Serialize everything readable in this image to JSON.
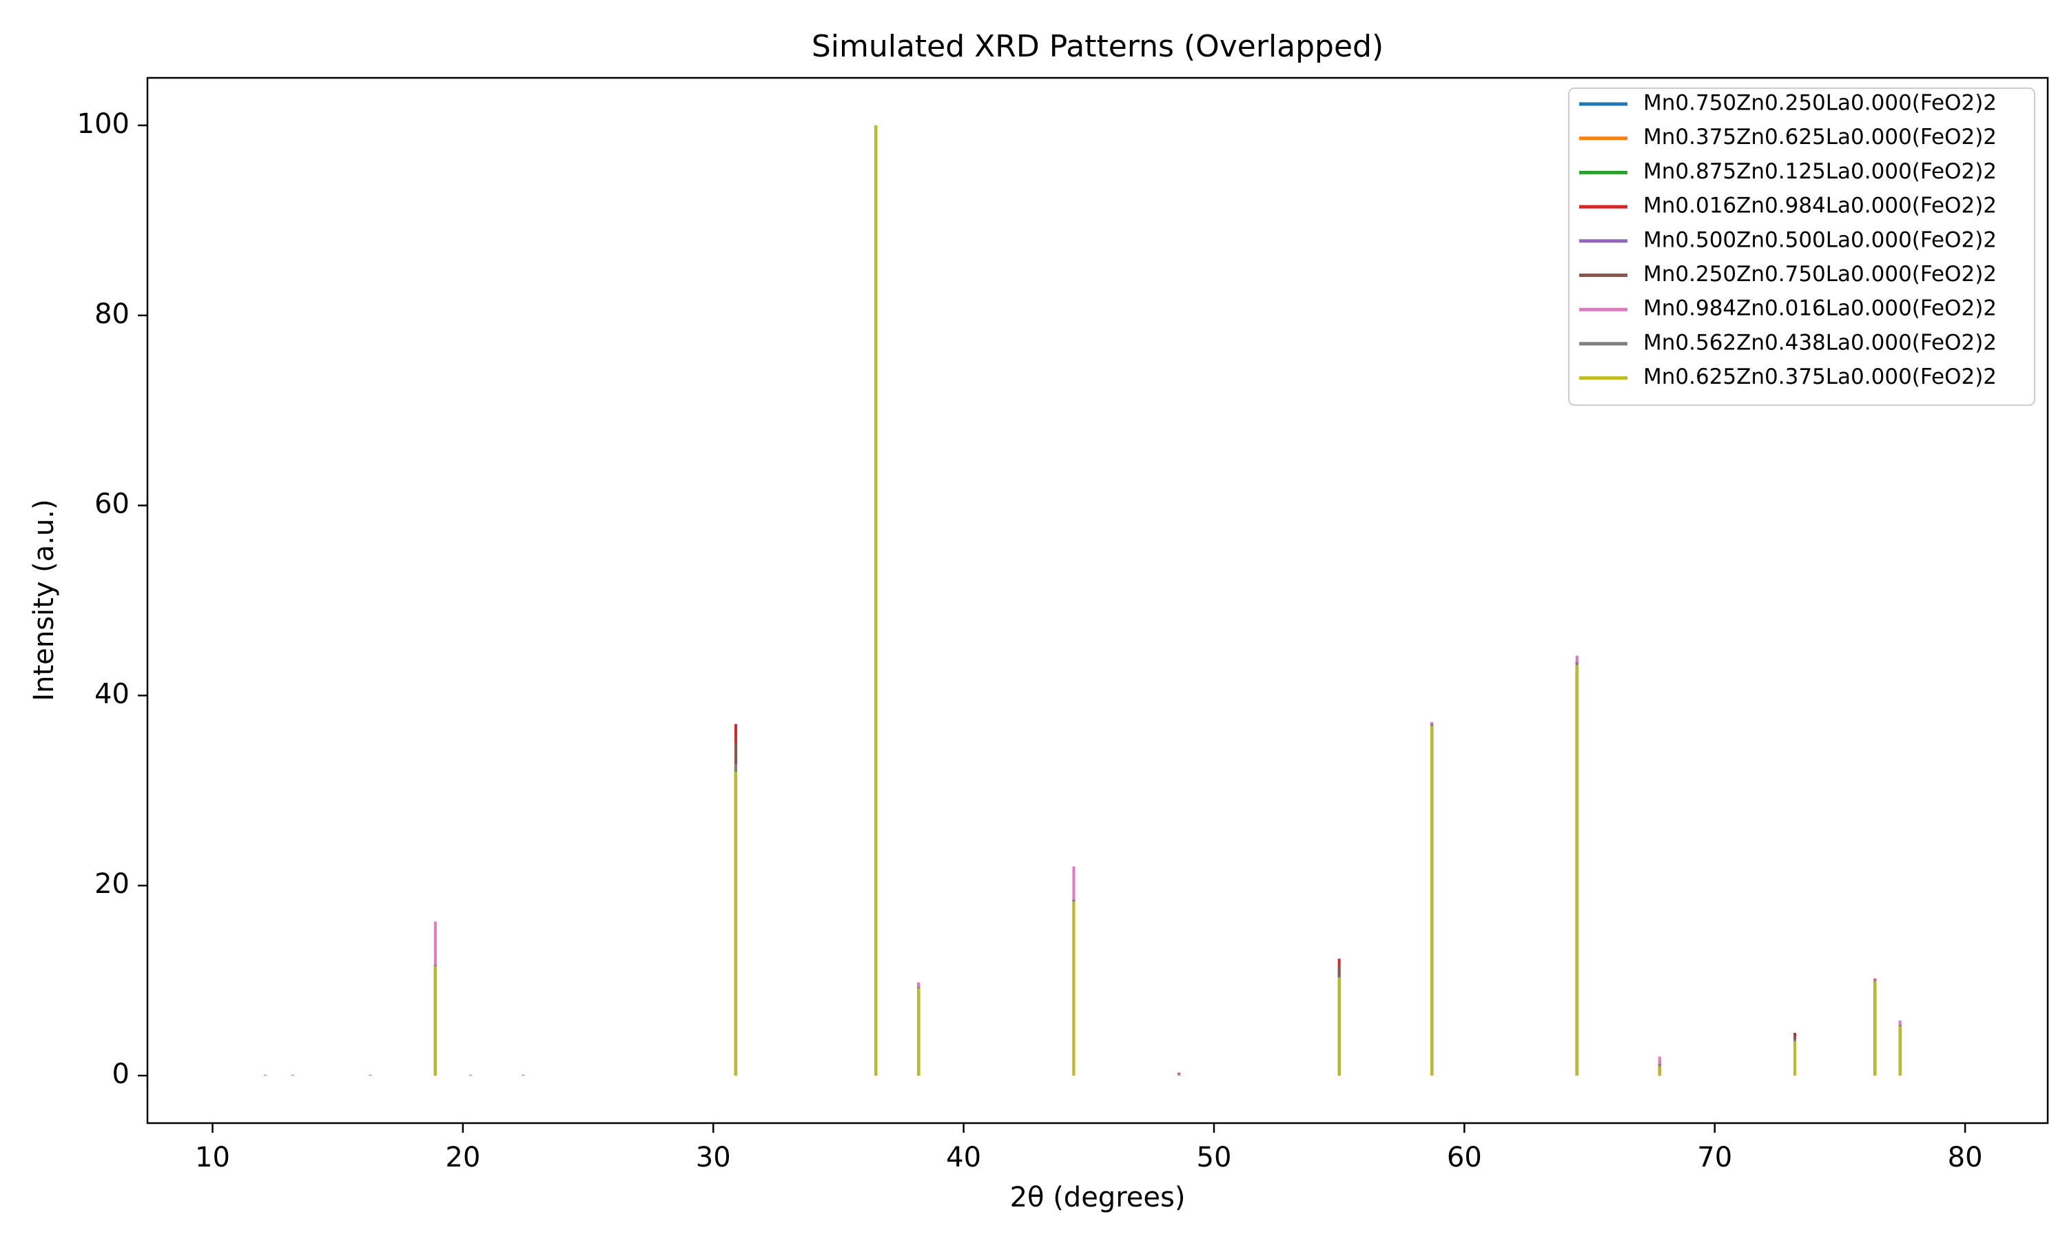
{
  "chart_data": {
    "type": "bar",
    "title": "Simulated XRD Patterns (Overlapped)",
    "xlabel": "2θ (degrees)",
    "ylabel": "Intensity (a.u.)",
    "xlim": [
      7.4,
      83.3
    ],
    "ylim": [
      -5,
      105
    ],
    "xticks": [
      10,
      20,
      30,
      40,
      50,
      60,
      70,
      80
    ],
    "yticks": [
      0,
      20,
      40,
      60,
      80,
      100
    ],
    "grid": false,
    "legend_position": "top-right",
    "series": [
      {
        "name": "Mn0.750Zn0.250La0.000(FeO2)2",
        "color": "#1f77b4",
        "peaks": [
          [
            18.9,
            11.6
          ],
          [
            30.9,
            32.5
          ],
          [
            36.5,
            100
          ],
          [
            38.2,
            9.3
          ],
          [
            44.4,
            18.5
          ],
          [
            55.0,
            10.5
          ],
          [
            58.7,
            37.0
          ],
          [
            64.5,
            43.5
          ],
          [
            67.8,
            1.2
          ],
          [
            73.2,
            3.8
          ],
          [
            76.4,
            10.0
          ],
          [
            77.4,
            5.3
          ]
        ]
      },
      {
        "name": "Mn0.375Zn0.625La0.000(FeO2)2",
        "color": "#ff7f0e",
        "peaks": [
          [
            18.9,
            11.6
          ],
          [
            30.9,
            32.5
          ],
          [
            36.5,
            100
          ],
          [
            38.2,
            9.3
          ],
          [
            44.4,
            18.5
          ],
          [
            55.0,
            10.5
          ],
          [
            58.7,
            37.0
          ],
          [
            64.5,
            43.5
          ],
          [
            67.8,
            1.2
          ],
          [
            73.2,
            3.8
          ],
          [
            76.4,
            10.0
          ],
          [
            77.4,
            5.3
          ]
        ]
      },
      {
        "name": "Mn0.875Zn0.125La0.000(FeO2)2",
        "color": "#2ca02c",
        "peaks": [
          [
            18.9,
            11.6
          ],
          [
            30.9,
            32.5
          ],
          [
            36.5,
            100
          ],
          [
            38.2,
            9.3
          ],
          [
            44.4,
            18.5
          ],
          [
            55.0,
            10.5
          ],
          [
            58.7,
            37.0
          ],
          [
            64.5,
            43.5
          ],
          [
            67.8,
            1.2
          ],
          [
            73.2,
            3.8
          ],
          [
            76.4,
            10.0
          ],
          [
            77.4,
            5.3
          ]
        ]
      },
      {
        "name": "Mn0.016Zn0.984La0.000(FeO2)2",
        "color": "#d62728",
        "peaks": [
          [
            18.9,
            11.8
          ],
          [
            30.9,
            37.0
          ],
          [
            36.5,
            100
          ],
          [
            38.2,
            9.4
          ],
          [
            44.4,
            18.6
          ],
          [
            48.6,
            0.3
          ],
          [
            55.0,
            12.3
          ],
          [
            58.7,
            37.2
          ],
          [
            64.5,
            43.6
          ],
          [
            67.8,
            1.3
          ],
          [
            73.2,
            4.5
          ],
          [
            76.4,
            10.2
          ],
          [
            77.4,
            5.4
          ]
        ]
      },
      {
        "name": "Mn0.500Zn0.500La0.000(FeO2)2",
        "color": "#9467bd",
        "peaks": [
          [
            18.9,
            11.7
          ],
          [
            30.9,
            32.5
          ],
          [
            36.5,
            100
          ],
          [
            38.2,
            9.8
          ],
          [
            44.4,
            18.6
          ],
          [
            55.0,
            10.5
          ],
          [
            58.7,
            37.0
          ],
          [
            64.5,
            43.8
          ],
          [
            67.8,
            1.5
          ],
          [
            73.2,
            3.9
          ],
          [
            76.4,
            10.0
          ],
          [
            77.4,
            5.5
          ]
        ]
      },
      {
        "name": "Mn0.250Zn0.750La0.000(FeO2)2",
        "color": "#8c564b",
        "peaks": [
          [
            18.9,
            11.6
          ],
          [
            30.9,
            35.0
          ],
          [
            36.5,
            100
          ],
          [
            38.2,
            9.3
          ],
          [
            44.4,
            18.5
          ],
          [
            55.0,
            11.5
          ],
          [
            58.7,
            37.0
          ],
          [
            64.5,
            43.5
          ],
          [
            67.8,
            1.2
          ],
          [
            73.2,
            4.2
          ],
          [
            76.4,
            10.1
          ],
          [
            77.4,
            5.3
          ]
        ]
      },
      {
        "name": "Mn0.984Zn0.016La0.000(FeO2)2",
        "color": "#e377c2",
        "peaks": [
          [
            12.1,
            0.1
          ],
          [
            13.2,
            0.1
          ],
          [
            16.3,
            0.1
          ],
          [
            18.9,
            16.2
          ],
          [
            20.3,
            0.1
          ],
          [
            22.4,
            0.1
          ],
          [
            30.9,
            32.0
          ],
          [
            36.5,
            100
          ],
          [
            38.2,
            9.8
          ],
          [
            44.4,
            22.0
          ],
          [
            48.6,
            0.2
          ],
          [
            55.0,
            10.3
          ],
          [
            58.7,
            37.2
          ],
          [
            64.5,
            44.2
          ],
          [
            67.8,
            2.0
          ],
          [
            73.2,
            3.8
          ],
          [
            76.4,
            10.1
          ],
          [
            77.4,
            5.8
          ]
        ]
      },
      {
        "name": "Mn0.562Zn0.438La0.000(FeO2)2",
        "color": "#7f7f7f",
        "peaks": [
          [
            18.9,
            11.6
          ],
          [
            30.9,
            32.8
          ],
          [
            36.5,
            100
          ],
          [
            38.2,
            9.3
          ],
          [
            44.4,
            18.5
          ],
          [
            55.0,
            10.5
          ],
          [
            58.7,
            37.0
          ],
          [
            64.5,
            43.5
          ],
          [
            67.8,
            1.2
          ],
          [
            73.2,
            3.8
          ],
          [
            76.4,
            10.0
          ],
          [
            77.4,
            5.3
          ]
        ]
      },
      {
        "name": "Mn0.625Zn0.375La0.000(FeO2)2",
        "color": "#bcbd22",
        "peaks": [
          [
            18.9,
            11.5
          ],
          [
            30.9,
            32.0
          ],
          [
            36.5,
            100
          ],
          [
            38.2,
            9.2
          ],
          [
            44.4,
            18.3
          ],
          [
            55.0,
            10.3
          ],
          [
            58.7,
            36.8
          ],
          [
            64.5,
            43.2
          ],
          [
            67.8,
            1.0
          ],
          [
            73.2,
            3.6
          ],
          [
            76.4,
            9.9
          ],
          [
            77.4,
            5.2
          ]
        ]
      }
    ]
  }
}
